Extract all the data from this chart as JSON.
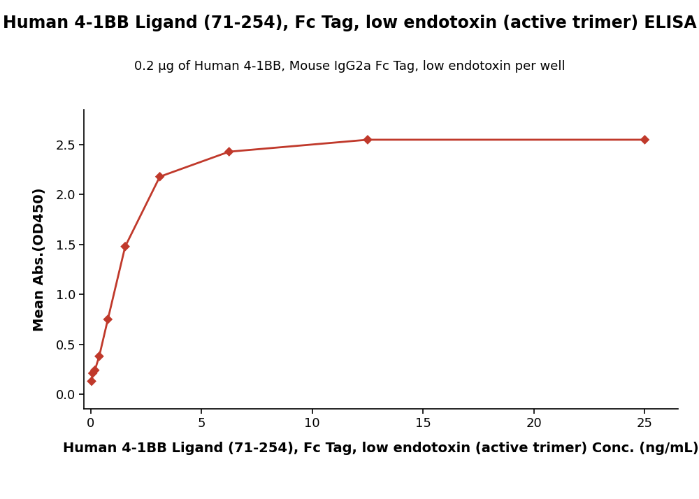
{
  "title": "Human 4-1BB Ligand (71-254), Fc Tag, low endotoxin (active trimer) ELISA",
  "subtitle": "0.2 μg of Human 4-1BB, Mouse IgG2a Fc Tag, low endotoxin per well",
  "xlabel": "Human 4-1BB Ligand (71-254), Fc Tag, low endotoxin (active trimer) Conc. (ng/mL)",
  "ylabel": "Mean Abs.(OD450)",
  "x_data": [
    0.049,
    0.098,
    0.195,
    0.391,
    0.781,
    1.563,
    3.125,
    6.25,
    12.5,
    25.0
  ],
  "y_data": [
    0.13,
    0.21,
    0.24,
    0.38,
    0.75,
    1.48,
    2.18,
    2.43,
    2.55,
    2.55
  ],
  "curve_color": "#c0392b",
  "marker_color": "#c0392b",
  "marker_style": "D",
  "marker_size": 7,
  "line_width": 2.0,
  "xlim": [
    -0.3,
    26.5
  ],
  "ylim": [
    -0.15,
    2.85
  ],
  "yticks": [
    0.0,
    0.5,
    1.0,
    1.5,
    2.0,
    2.5
  ],
  "xticks": [
    0,
    5,
    10,
    15,
    20,
    25
  ],
  "title_fontsize": 17,
  "subtitle_fontsize": 13,
  "axis_label_fontsize": 14,
  "tick_fontsize": 13,
  "background_color": "#ffffff",
  "title_fontweight": "bold",
  "xlabel_fontweight": "bold"
}
